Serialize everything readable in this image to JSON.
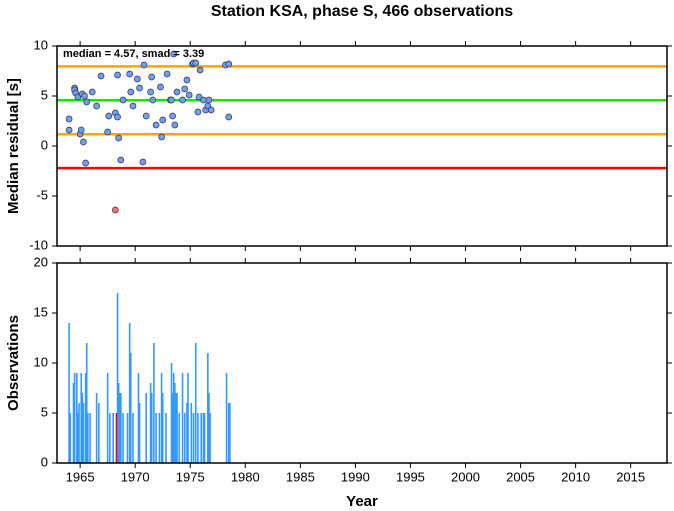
{
  "chart_data": [
    {
      "type": "scatter",
      "title": "Station KSA, phase S, 466 observations",
      "ylabel": "Median residual [s]",
      "annotation": "median = 4.57, smad = 3.39",
      "xlim": [
        1962.9,
        2018.3
      ],
      "ylim": [
        -10,
        10
      ],
      "yticks": [
        -10,
        -5,
        0,
        5,
        10
      ],
      "hlines": [
        {
          "value": 7.96,
          "color": "#ffa500"
        },
        {
          "value": 4.57,
          "color": "#00ee00"
        },
        {
          "value": 1.18,
          "color": "#ffa500"
        },
        {
          "value": -2.21,
          "color": "#ff0000"
        }
      ],
      "series": [
        {
          "color": "#6e9ff2",
          "x": [
            1964.0,
            1964.0,
            1964.5,
            1964.5,
            1964.6,
            1964.8,
            1965.0,
            1965.1,
            1965.2,
            1965.3,
            1965.4,
            1965.5,
            1965.6,
            1966.1,
            1966.5,
            1966.9,
            1967.5,
            1967.6,
            1968.2,
            1968.4,
            1968.4,
            1968.5,
            1968.7,
            1968.9,
            1969.5,
            1969.6,
            1969.8,
            1970.2,
            1970.4,
            1970.8,
            1970.7,
            1971.0,
            1971.4,
            1971.5,
            1971.6,
            1971.9,
            1972.3,
            1972.4,
            1972.5,
            1972.9,
            1973.2,
            1973.3,
            1973.4,
            1973.5,
            1973.6,
            1973.8,
            1974.3,
            1974.5,
            1974.7,
            1974.9,
            1975.2,
            1975.3,
            1975.5,
            1975.7,
            1975.8,
            1975.9,
            1976.2,
            1976.4,
            1976.6,
            1976.7,
            1976.9,
            1978.2,
            1978.5,
            1978.5
          ],
          "values": [
            2.7,
            1.6,
            5.8,
            5.6,
            5.3,
            4.9,
            1.2,
            1.6,
            5.2,
            0.4,
            5.0,
            -1.7,
            4.4,
            5.4,
            4.0,
            7.0,
            1.4,
            3.0,
            3.3,
            7.1,
            2.9,
            0.8,
            -1.4,
            4.6,
            7.2,
            5.4,
            4.0,
            6.7,
            5.8,
            8.1,
            -1.6,
            3.0,
            5.4,
            6.9,
            4.6,
            2.1,
            5.9,
            0.9,
            2.6,
            7.2,
            4.6,
            4.6,
            3.0,
            9.2,
            2.1,
            5.4,
            4.6,
            5.7,
            6.6,
            5.1,
            8.2,
            8.3,
            8.3,
            3.4,
            4.9,
            7.6,
            4.6,
            3.6,
            4.0,
            4.6,
            3.6,
            8.1,
            8.2,
            2.9
          ]
        },
        {
          "color": "#ff7070",
          "x": [
            1968.2
          ],
          "values": [
            -6.4
          ]
        }
      ]
    },
    {
      "type": "bar",
      "xlabel": "Year",
      "ylabel": "Observations",
      "xlim": [
        1962.9,
        2018.3
      ],
      "xticks": [
        1965,
        1970,
        1975,
        1980,
        1985,
        1990,
        1995,
        2000,
        2005,
        2010,
        2015
      ],
      "ylim": [
        0,
        20
      ],
      "yticks": [
        0,
        5,
        10,
        15,
        20
      ],
      "series": [
        {
          "color": "#3399ff",
          "x": [
            1964.0,
            1964.1,
            1964.4,
            1964.5,
            1964.7,
            1964.8,
            1964.9,
            1965.1,
            1965.2,
            1965.3,
            1965.5,
            1965.6,
            1965.7,
            1965.9,
            1966.5,
            1966.7,
            1967.5,
            1967.7,
            1968.0,
            1968.4,
            1968.5,
            1968.6,
            1968.7,
            1968.9,
            1969.3,
            1969.5,
            1969.6,
            1969.8,
            1970.3,
            1970.4,
            1971.0,
            1971.4,
            1971.5,
            1971.7,
            1971.9,
            1972.2,
            1972.4,
            1972.5,
            1972.8,
            1973.3,
            1973.4,
            1973.5,
            1973.6,
            1973.7,
            1973.8,
            1974.0,
            1974.3,
            1974.5,
            1974.7,
            1974.8,
            1975.1,
            1975.3,
            1975.5,
            1975.7,
            1976.0,
            1976.2,
            1976.3,
            1976.6,
            1976.7,
            1976.8,
            1978.3,
            1978.5,
            1978.6
          ],
          "values": [
            14,
            5,
            8,
            9,
            9,
            5,
            6,
            9,
            7,
            6,
            9,
            12,
            5,
            5,
            7,
            6,
            9,
            5,
            5,
            17,
            8,
            7,
            7,
            5,
            5,
            14,
            11,
            5,
            9,
            6,
            7,
            8,
            7,
            12,
            5,
            5,
            9,
            7,
            5,
            10,
            7,
            9,
            8,
            7,
            7,
            5,
            9,
            5,
            6,
            9,
            6,
            5,
            12,
            5,
            5,
            5,
            5,
            11,
            7,
            5,
            9,
            6,
            6
          ]
        },
        {
          "color": "#ff0000",
          "x": [
            1968.3
          ],
          "values": [
            5
          ]
        }
      ]
    }
  ]
}
